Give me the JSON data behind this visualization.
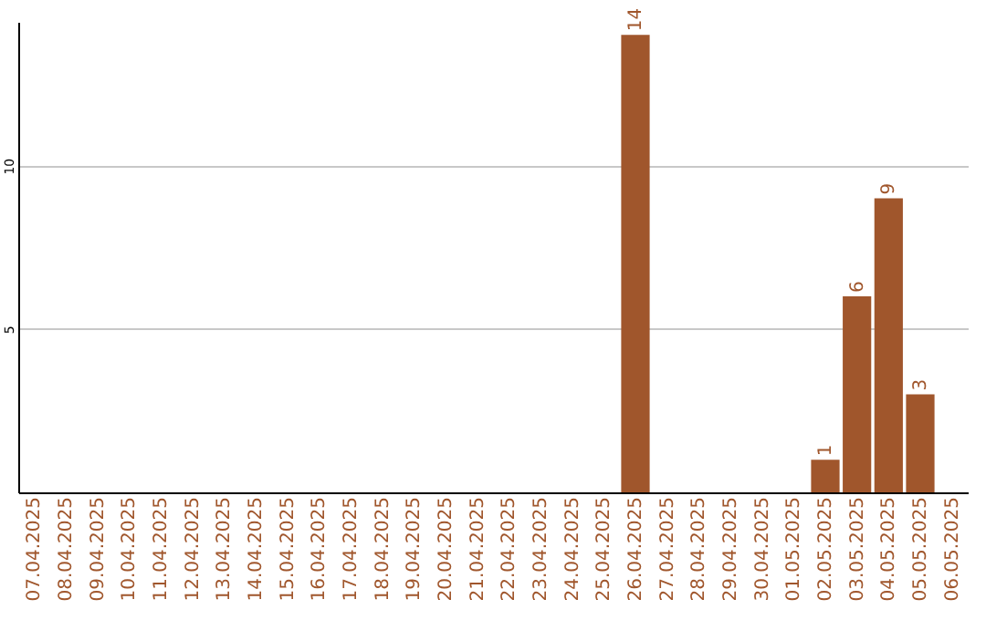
{
  "chart_data": {
    "type": "bar",
    "categories": [
      "07.04.2025",
      "08.04.2025",
      "09.04.2025",
      "10.04.2025",
      "11.04.2025",
      "12.04.2025",
      "13.04.2025",
      "14.04.2025",
      "15.04.2025",
      "16.04.2025",
      "17.04.2025",
      "18.04.2025",
      "19.04.2025",
      "20.04.2025",
      "21.04.2025",
      "22.04.2025",
      "23.04.2025",
      "24.04.2025",
      "25.04.2025",
      "26.04.2025",
      "27.04.2025",
      "28.04.2025",
      "29.04.2025",
      "30.04.2025",
      "01.05.2025",
      "02.05.2025",
      "03.05.2025",
      "04.05.2025",
      "05.05.2025",
      "06.05.2025"
    ],
    "values": [
      0,
      0,
      0,
      0,
      0,
      0,
      0,
      0,
      0,
      0,
      0,
      0,
      0,
      0,
      0,
      0,
      0,
      0,
      0,
      14,
      0,
      0,
      0,
      0,
      0,
      1,
      6,
      9,
      3,
      0
    ],
    "value_labels": [
      null,
      null,
      null,
      null,
      null,
      null,
      null,
      null,
      null,
      null,
      null,
      null,
      null,
      null,
      null,
      null,
      null,
      null,
      null,
      "14",
      null,
      null,
      null,
      null,
      null,
      "1",
      "6",
      "9",
      "3",
      null
    ],
    "color": "#a0562c",
    "ylim": [
      0,
      14.4
    ],
    "yticks": [
      5,
      10
    ],
    "grid": "y"
  }
}
